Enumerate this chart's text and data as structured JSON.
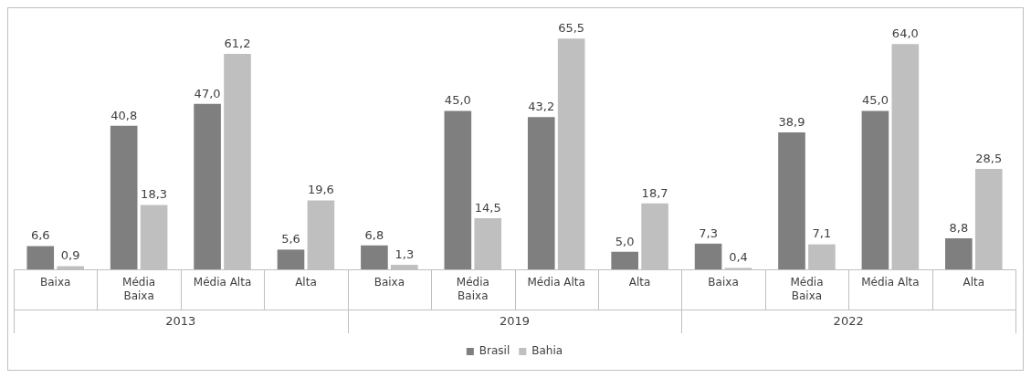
{
  "chart_data": {
    "type": "bar",
    "categories": [
      "Baixa",
      "Média Baixa",
      "Média Alta",
      "Alta",
      "Baixa",
      "Média Baixa",
      "Média Alta",
      "Alta",
      "Baixa",
      "Média Baixa",
      "Média Alta",
      "Alta"
    ],
    "series": [
      {
        "name": "Brasil",
        "color": "#7f7f7f",
        "values": [
          6.6,
          40.8,
          47.0,
          5.6,
          6.8,
          45.0,
          43.2,
          5.0,
          7.3,
          38.9,
          45.0,
          8.8
        ],
        "value_labels": [
          "6,6",
          "40,8",
          "47,0",
          "5,6",
          "6,8",
          "45,0",
          "43,2",
          "5,0",
          "7,3",
          "38,9",
          "45,0",
          "8,8"
        ]
      },
      {
        "name": "Bahia",
        "color": "#bfbfbf",
        "values": [
          0.9,
          18.3,
          61.2,
          19.6,
          1.3,
          14.5,
          65.5,
          18.7,
          0.4,
          7.1,
          64.0,
          28.5
        ],
        "value_labels": [
          "0,9",
          "18,3",
          "61,2",
          "19,6",
          "1,3",
          "14,5",
          "65,5",
          "18,7",
          "0,4",
          "7,1",
          "64,0",
          "28,5"
        ]
      }
    ],
    "annotations": [
      "2013",
      "2019",
      "2022"
    ],
    "grid": false,
    "legend": "bottom"
  }
}
